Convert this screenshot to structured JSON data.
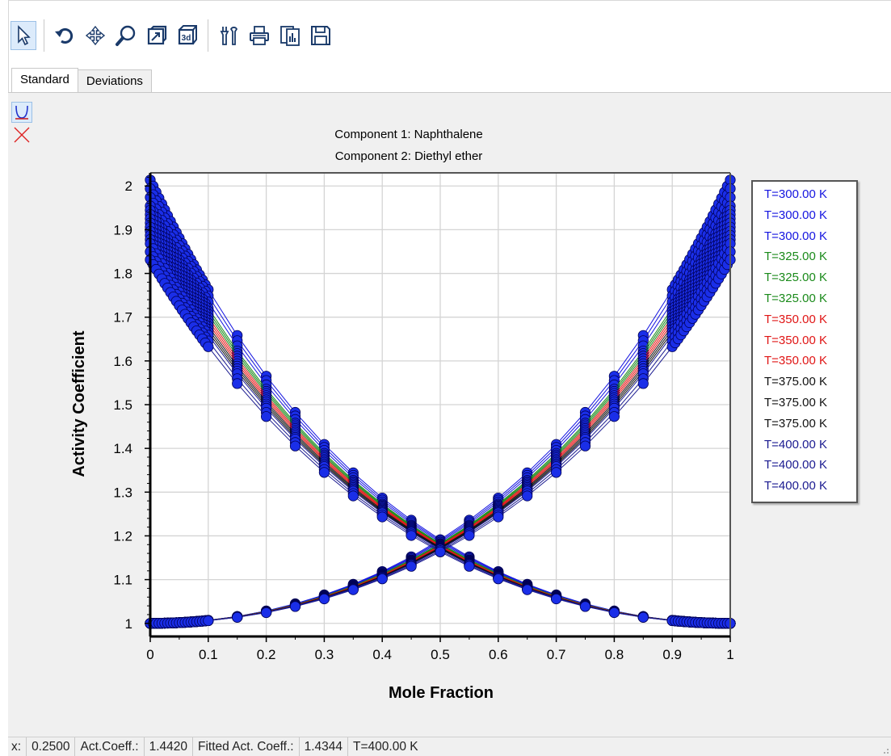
{
  "toolbar": {
    "buttons": [
      {
        "name": "pointer-button",
        "icon": "arrow-pointer-icon",
        "active": true
      },
      {
        "name": "reset-button",
        "icon": "rotate-back-icon"
      },
      {
        "name": "pan-button",
        "icon": "move-arrows-icon"
      },
      {
        "name": "zoom-button",
        "icon": "magnifier-icon"
      },
      {
        "name": "view-2d-button",
        "icon": "chart-2d-icon"
      },
      {
        "name": "view-3d-button",
        "icon": "chart-3d-icon"
      },
      {
        "name": "properties-button",
        "icon": "tools-icon"
      },
      {
        "name": "print-button",
        "icon": "printer-icon"
      },
      {
        "name": "copy-button",
        "icon": "copy-chart-icon"
      },
      {
        "name": "save-button",
        "icon": "floppy-disk-icon"
      }
    ]
  },
  "tabs": [
    {
      "label": "Standard",
      "active": true
    },
    {
      "label": "Deviations",
      "active": false
    }
  ],
  "side_tools": [
    {
      "name": "curve-tool",
      "icon": "parabola-curve-icon",
      "active": true
    },
    {
      "name": "marker-tool",
      "icon": "cross-icon",
      "active": false
    }
  ],
  "chart_data": {
    "type": "line",
    "title_lines": [
      "Component 1: Naphthalene",
      "Component 2: Diethyl ether"
    ],
    "xlabel": "Mole Fraction",
    "ylabel": "Activity Coefficient",
    "xlim": [
      0,
      1
    ],
    "ylim": [
      0.97,
      2.03
    ],
    "xticks": [
      "0",
      "0.1",
      "0.2",
      "0.3",
      "0.4",
      "0.5",
      "0.6",
      "0.7",
      "0.8",
      "0.9",
      "1"
    ],
    "yticks": [
      "1",
      "1.1",
      "1.2",
      "1.3",
      "1.4",
      "1.5",
      "1.6",
      "1.7",
      "1.8",
      "1.9",
      "2"
    ],
    "grid": true,
    "legend_position": "right",
    "x": [
      0,
      0.005,
      0.01,
      0.015,
      0.02,
      0.025,
      0.03,
      0.035,
      0.04,
      0.045,
      0.05,
      0.055,
      0.06,
      0.065,
      0.07,
      0.075,
      0.08,
      0.085,
      0.09,
      0.095,
      0.1,
      0.15,
      0.2,
      0.25,
      0.3,
      0.35,
      0.4,
      0.45,
      0.5,
      0.55,
      0.6,
      0.65,
      0.7,
      0.75,
      0.8,
      0.85,
      0.9,
      0.905,
      0.91,
      0.915,
      0.92,
      0.925,
      0.93,
      0.935,
      0.94,
      0.945,
      0.95,
      0.955,
      0.96,
      0.965,
      0.97,
      0.975,
      0.98,
      0.985,
      0.99,
      0.995,
      1
    ],
    "series": [
      {
        "name": "T=300.00 K",
        "color": "#1515e0",
        "A": 0.7
      },
      {
        "name": "T=300.00 K",
        "color": "#1515e0",
        "A": 0.69
      },
      {
        "name": "T=300.00 K",
        "color": "#1515e0",
        "A": 0.68
      },
      {
        "name": "T=325.00 K",
        "color": "#1a8a1a",
        "A": 0.67
      },
      {
        "name": "T=325.00 K",
        "color": "#1a8a1a",
        "A": 0.665
      },
      {
        "name": "T=325.00 K",
        "color": "#1a8a1a",
        "A": 0.66
      },
      {
        "name": "T=350.00 K",
        "color": "#e01515",
        "A": 0.655
      },
      {
        "name": "T=350.00 K",
        "color": "#e01515",
        "A": 0.65
      },
      {
        "name": "T=350.00 K",
        "color": "#e01515",
        "A": 0.645
      },
      {
        "name": "T=375.00 K",
        "color": "#111111",
        "A": 0.64
      },
      {
        "name": "T=375.00 K",
        "color": "#111111",
        "A": 0.635
      },
      {
        "name": "T=375.00 K",
        "color": "#111111",
        "A": 0.63
      },
      {
        "name": "T=400.00 K",
        "color": "#1a1a90",
        "A": 0.625
      },
      {
        "name": "T=400.00 K",
        "color": "#1a1a90",
        "A": 0.615
      },
      {
        "name": "T=400.00 K",
        "color": "#1a1a90",
        "A": 0.605
      }
    ]
  },
  "status": {
    "x_label": "x:",
    "x_value": "0.2500",
    "act_label": "Act.Coeff.:",
    "act_value": "1.4420",
    "fitted_label": "Fitted Act. Coeff.:",
    "fitted_value": "1.4344",
    "temp": "T=400.00 K"
  }
}
